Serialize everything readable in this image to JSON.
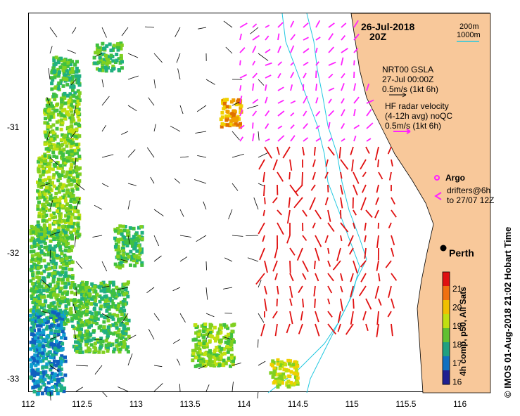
{
  "title": {
    "date": "26-Jul-2018",
    "time": "20Z"
  },
  "scale": {
    "isobath1": "200m",
    "isobath2": "1000m"
  },
  "legend": {
    "gsla_title": "NRT00 GSLA",
    "gsla_time": "27-Jul 00:00Z",
    "gsla_speed": "0.5m/s (1kt 6h)",
    "hf_title": "HF radar velocity",
    "hf_avg": "(4-12h avg) noQC",
    "hf_speed": "0.5m/s (1kt 6h)",
    "argo": "Argo",
    "drifters1": "drifters@6h",
    "drifters2": "to 27/07 12Z"
  },
  "places": {
    "perth": "Perth"
  },
  "axes": {
    "x_ticks": [
      "112",
      "112.5",
      "113",
      "113.5",
      "114",
      "114.5",
      "115",
      "115.5",
      "116"
    ],
    "y_ticks": [
      "-31",
      "-32",
      "-33"
    ]
  },
  "colorbar": {
    "ticks": [
      "21",
      "20",
      "19",
      "18",
      "17",
      "16"
    ],
    "label": "4h comp, p50, All Sats"
  },
  "credit": "© IMOS 01-Aug-2018 21:02 Hobart Time",
  "colors": {
    "land": "#f8c89a",
    "hf_arrow": "#e01010",
    "gsla_arrow": "#000000",
    "drifter": "#ff22ff",
    "isobath": "#22c8e0"
  }
}
